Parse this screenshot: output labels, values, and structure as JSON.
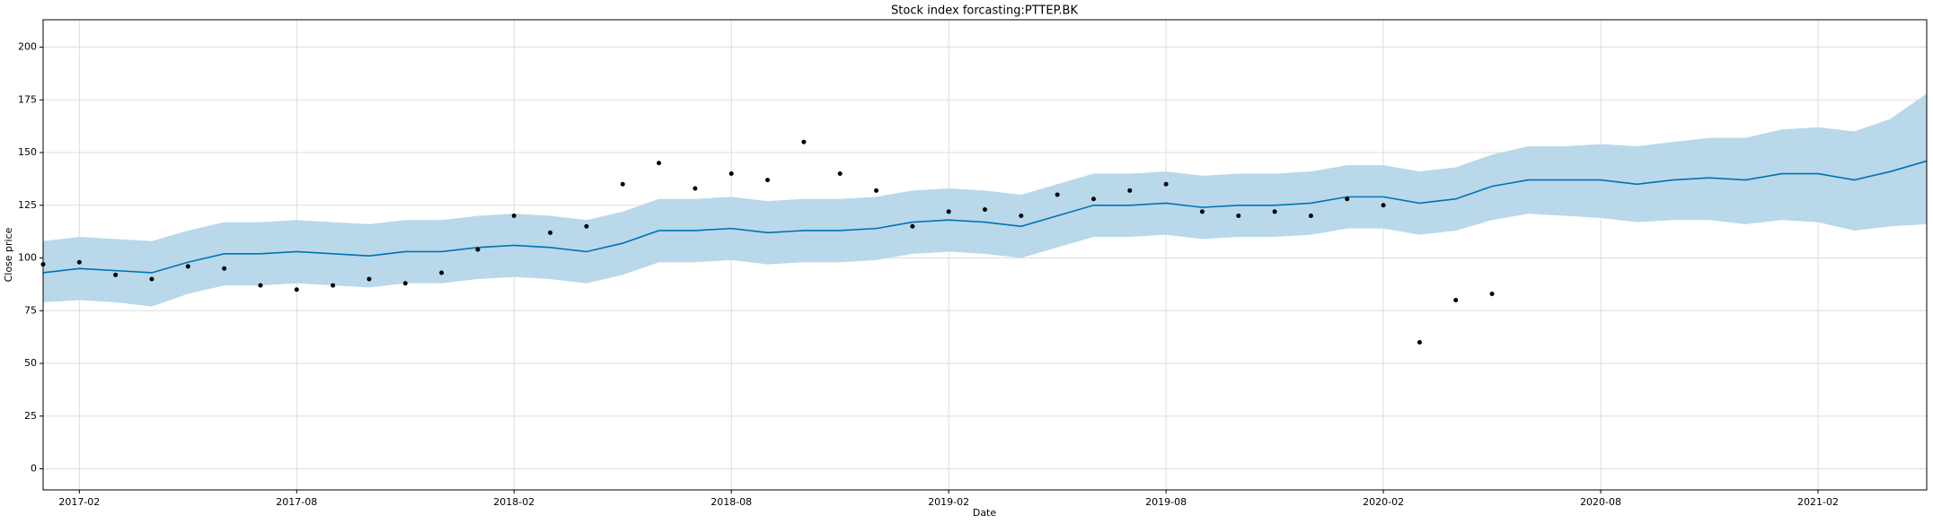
{
  "chart_data": {
    "type": "forecast",
    "title": "Stock index forcasting:PTTEP.BK",
    "x_label": "Date",
    "y_label": "Close price",
    "grid": true,
    "xlim": [
      "2017-01",
      "2021-05"
    ],
    "ylim": [
      -10,
      213
    ],
    "xticks": [
      "2017-02",
      "2017-08",
      "2018-02",
      "2018-08",
      "2019-02",
      "2019-08",
      "2020-02",
      "2020-08",
      "2021-02"
    ],
    "yticks": [
      0,
      25,
      50,
      75,
      100,
      125,
      150,
      175,
      200
    ],
    "series": [
      {
        "type": "band",
        "color": "#0072B2",
        "band_color": "#b9d8ea",
        "x": [
          "2017-01",
          "2017-02",
          "2017-03",
          "2017-04",
          "2017-05",
          "2017-06",
          "2017-07",
          "2017-08",
          "2017-09",
          "2017-10",
          "2017-11",
          "2017-12",
          "2018-01",
          "2018-02",
          "2018-03",
          "2018-04",
          "2018-05",
          "2018-06",
          "2018-07",
          "2018-08",
          "2018-09",
          "2018-10",
          "2018-11",
          "2018-12",
          "2019-01",
          "2019-02",
          "2019-03",
          "2019-04",
          "2019-05",
          "2019-06",
          "2019-07",
          "2019-08",
          "2019-09",
          "2019-10",
          "2019-11",
          "2019-12",
          "2020-01",
          "2020-02",
          "2020-03",
          "2020-04",
          "2020-05",
          "2020-06",
          "2020-07",
          "2020-08",
          "2020-09",
          "2020-10",
          "2020-11",
          "2020-12",
          "2021-01",
          "2021-02",
          "2021-03",
          "2021-04",
          "2021-05"
        ],
        "values": [
          93,
          95,
          94,
          93,
          98,
          102,
          102,
          103,
          102,
          101,
          103,
          103,
          105,
          106,
          105,
          103,
          107,
          113,
          113,
          114,
          112,
          113,
          113,
          114,
          117,
          118,
          117,
          115,
          120,
          125,
          125,
          126,
          124,
          125,
          125,
          126,
          129,
          129,
          126,
          128,
          134,
          137,
          137,
          137,
          135,
          137,
          138,
          137,
          140,
          140,
          137,
          141,
          146
        ],
        "lower": [
          79,
          80,
          79,
          77,
          83,
          87,
          87,
          88,
          87,
          86,
          88,
          88,
          90,
          91,
          90,
          88,
          92,
          98,
          98,
          99,
          97,
          98,
          98,
          99,
          102,
          103,
          102,
          100,
          105,
          110,
          110,
          111,
          109,
          110,
          110,
          111,
          114,
          114,
          111,
          113,
          118,
          121,
          120,
          119,
          117,
          118,
          118,
          116,
          118,
          117,
          113,
          115,
          116
        ],
        "upper": [
          108,
          110,
          109,
          108,
          113,
          117,
          117,
          118,
          117,
          116,
          118,
          118,
          120,
          121,
          120,
          118,
          122,
          128,
          128,
          129,
          127,
          128,
          128,
          129,
          132,
          133,
          132,
          130,
          135,
          140,
          140,
          141,
          139,
          140,
          140,
          141,
          144,
          144,
          141,
          143,
          149,
          153,
          153,
          154,
          153,
          155,
          157,
          157,
          161,
          162,
          160,
          166,
          178
        ]
      },
      {
        "type": "scatter",
        "color": "#000000",
        "x": [
          "2017-01",
          "2017-02",
          "2017-03",
          "2017-04",
          "2017-05",
          "2017-06",
          "2017-07",
          "2017-08",
          "2017-09",
          "2017-10",
          "2017-11",
          "2017-12",
          "2018-01",
          "2018-02",
          "2018-03",
          "2018-04",
          "2018-05",
          "2018-06",
          "2018-07",
          "2018-08",
          "2018-09",
          "2018-10",
          "2018-11",
          "2018-12",
          "2019-01",
          "2019-02",
          "2019-03",
          "2019-04",
          "2019-05",
          "2019-06",
          "2019-07",
          "2019-08",
          "2019-09",
          "2019-10",
          "2019-11",
          "2019-12",
          "2020-01",
          "2020-02",
          "2020-03",
          "2020-04",
          "2020-05"
        ],
        "values": [
          97,
          98,
          92,
          90,
          96,
          95,
          87,
          85,
          87,
          90,
          88,
          93,
          104,
          120,
          112,
          115,
          135,
          145,
          133,
          140,
          137,
          155,
          140,
          132,
          115,
          122,
          123,
          120,
          130,
          128,
          132,
          135,
          122,
          120,
          122,
          120,
          128,
          125,
          60,
          80,
          83
        ]
      }
    ]
  }
}
